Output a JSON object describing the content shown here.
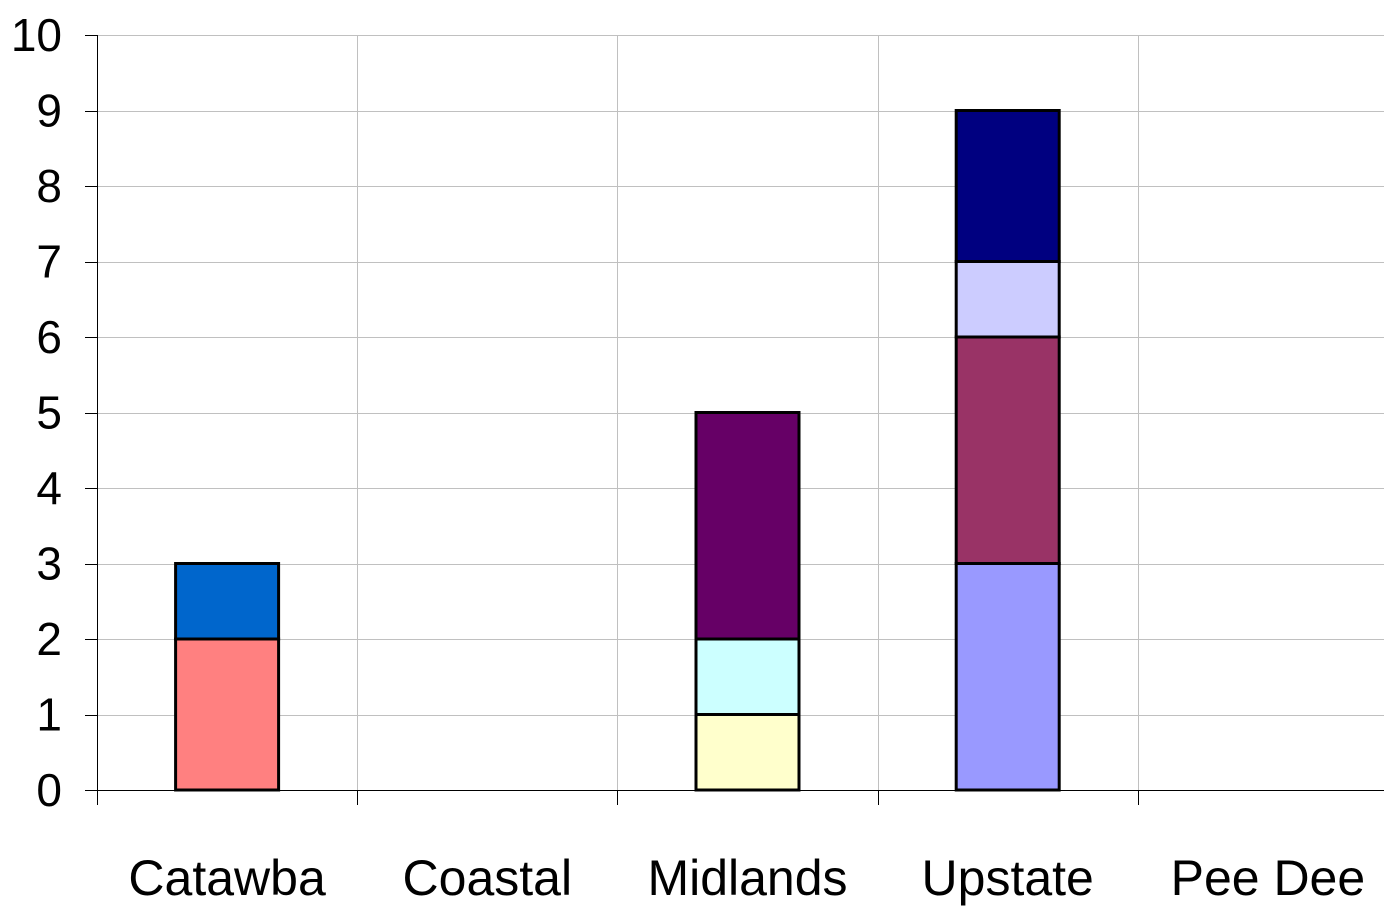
{
  "chart_data": {
    "type": "bar",
    "stacked": true,
    "categories": [
      "Catawba",
      "Coastal",
      "Midlands",
      "Upstate",
      "Pee Dee"
    ],
    "ylim": [
      0,
      10
    ],
    "yticks": [
      "0",
      "1",
      "2",
      "3",
      "4",
      "5",
      "6",
      "7",
      "8",
      "9",
      "10"
    ],
    "grid": true,
    "legend": "none",
    "stacks": [
      {
        "category": "Catawba",
        "segments": [
          {
            "value": 2,
            "color": "#FF8080"
          },
          {
            "value": 1,
            "color": "#0066CC"
          }
        ]
      },
      {
        "category": "Coastal",
        "segments": []
      },
      {
        "category": "Midlands",
        "segments": [
          {
            "value": 1,
            "color": "#FFFFCC"
          },
          {
            "value": 1,
            "color": "#CCFFFF"
          },
          {
            "value": 3,
            "color": "#660066"
          }
        ]
      },
      {
        "category": "Upstate",
        "segments": [
          {
            "value": 3,
            "color": "#9999FF"
          },
          {
            "value": 3,
            "color": "#993366"
          },
          {
            "value": 1,
            "color": "#CCCCFF"
          },
          {
            "value": 2,
            "color": "#000080"
          }
        ]
      },
      {
        "category": "Pee Dee",
        "segments": []
      }
    ]
  }
}
